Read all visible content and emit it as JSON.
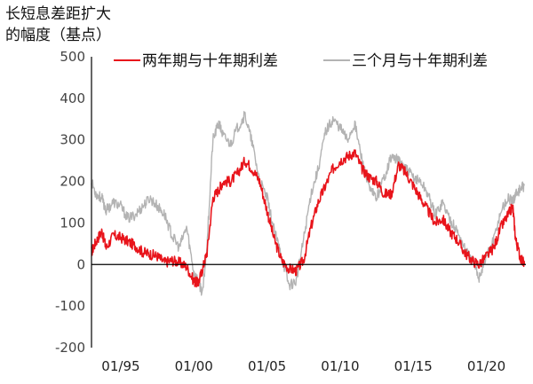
{
  "chart_data": {
    "type": "line",
    "title_lines": [
      "长短息差距扩大",
      "的幅度（基点）"
    ],
    "y_ticks": [
      "500",
      "400",
      "300",
      "200",
      "100",
      "0",
      "-100",
      "-200"
    ],
    "ylim": [
      -200,
      500
    ],
    "x_ticks": [
      "01/95",
      "01/00",
      "01/05",
      "01/10",
      "01/15",
      "01/20"
    ],
    "xlim": [
      1993,
      2022.7
    ],
    "legend_position": "top",
    "colors": {
      "two_year": "#e8141b",
      "three_month": "#b3b3b3",
      "zero_line": "#000000"
    },
    "series": [
      {
        "name": "两年期与十年期利差",
        "key": "two_year",
        "points": [
          [
            1993.0,
            30
          ],
          [
            1993.3,
            55
          ],
          [
            1993.7,
            80
          ],
          [
            1994.0,
            40
          ],
          [
            1994.5,
            70
          ],
          [
            1995.0,
            65
          ],
          [
            1995.5,
            55
          ],
          [
            1996.0,
            45
          ],
          [
            1996.5,
            30
          ],
          [
            1997.0,
            25
          ],
          [
            1997.5,
            20
          ],
          [
            1998.0,
            5
          ],
          [
            1998.5,
            10
          ],
          [
            1999.0,
            5
          ],
          [
            1999.5,
            -5
          ],
          [
            2000.0,
            -40
          ],
          [
            2000.3,
            -45
          ],
          [
            2000.6,
            -10
          ],
          [
            2000.9,
            30
          ],
          [
            2001.3,
            160
          ],
          [
            2001.7,
            180
          ],
          [
            2002.0,
            200
          ],
          [
            2002.5,
            200
          ],
          [
            2003.0,
            220
          ],
          [
            2003.5,
            250
          ],
          [
            2004.0,
            230
          ],
          [
            2004.5,
            200
          ],
          [
            2005.0,
            130
          ],
          [
            2005.5,
            60
          ],
          [
            2006.0,
            10
          ],
          [
            2006.5,
            -10
          ],
          [
            2007.0,
            -15
          ],
          [
            2007.5,
            10
          ],
          [
            2008.0,
            90
          ],
          [
            2008.5,
            150
          ],
          [
            2009.0,
            190
          ],
          [
            2009.5,
            230
          ],
          [
            2010.0,
            250
          ],
          [
            2010.5,
            260
          ],
          [
            2011.0,
            270
          ],
          [
            2011.5,
            230
          ],
          [
            2012.0,
            210
          ],
          [
            2012.5,
            200
          ],
          [
            2013.0,
            170
          ],
          [
            2013.5,
            170
          ],
          [
            2014.0,
            240
          ],
          [
            2014.5,
            220
          ],
          [
            2015.0,
            190
          ],
          [
            2015.5,
            160
          ],
          [
            2016.0,
            130
          ],
          [
            2016.5,
            100
          ],
          [
            2017.0,
            110
          ],
          [
            2017.5,
            80
          ],
          [
            2018.0,
            60
          ],
          [
            2018.5,
            30
          ],
          [
            2019.0,
            10
          ],
          [
            2019.5,
            0
          ],
          [
            2020.0,
            20
          ],
          [
            2020.5,
            40
          ],
          [
            2021.0,
            90
          ],
          [
            2021.5,
            120
          ],
          [
            2021.8,
            140
          ],
          [
            2022.0,
            60
          ],
          [
            2022.3,
            20
          ],
          [
            2022.6,
            0
          ]
        ]
      },
      {
        "name": "三个月与十年期利差",
        "key": "three_month",
        "points": [
          [
            1993.0,
            200
          ],
          [
            1993.3,
            170
          ],
          [
            1993.7,
            160
          ],
          [
            1994.0,
            130
          ],
          [
            1994.5,
            150
          ],
          [
            1995.0,
            140
          ],
          [
            1995.5,
            110
          ],
          [
            1996.0,
            120
          ],
          [
            1996.5,
            140
          ],
          [
            1997.0,
            160
          ],
          [
            1997.5,
            140
          ],
          [
            1998.0,
            120
          ],
          [
            1998.5,
            70
          ],
          [
            1999.0,
            40
          ],
          [
            1999.5,
            90
          ],
          [
            2000.0,
            -20
          ],
          [
            2000.3,
            -40
          ],
          [
            2000.6,
            -70
          ],
          [
            2000.9,
            50
          ],
          [
            2001.3,
            300
          ],
          [
            2001.7,
            340
          ],
          [
            2002.0,
            310
          ],
          [
            2002.5,
            290
          ],
          [
            2003.0,
            330
          ],
          [
            2003.5,
            360
          ],
          [
            2004.0,
            290
          ],
          [
            2004.5,
            200
          ],
          [
            2005.0,
            160
          ],
          [
            2005.5,
            80
          ],
          [
            2006.0,
            20
          ],
          [
            2006.5,
            -50
          ],
          [
            2007.0,
            -40
          ],
          [
            2007.5,
            60
          ],
          [
            2008.0,
            170
          ],
          [
            2008.5,
            230
          ],
          [
            2009.0,
            320
          ],
          [
            2009.5,
            350
          ],
          [
            2010.0,
            330
          ],
          [
            2010.5,
            300
          ],
          [
            2011.0,
            340
          ],
          [
            2011.5,
            250
          ],
          [
            2012.0,
            180
          ],
          [
            2012.5,
            160
          ],
          [
            2013.0,
            210
          ],
          [
            2013.5,
            260
          ],
          [
            2014.0,
            250
          ],
          [
            2014.5,
            230
          ],
          [
            2015.0,
            210
          ],
          [
            2015.5,
            200
          ],
          [
            2016.0,
            170
          ],
          [
            2016.5,
            120
          ],
          [
            2017.0,
            150
          ],
          [
            2017.5,
            110
          ],
          [
            2018.0,
            80
          ],
          [
            2018.5,
            40
          ],
          [
            2019.0,
            10
          ],
          [
            2019.5,
            -30
          ],
          [
            2020.0,
            20
          ],
          [
            2020.5,
            60
          ],
          [
            2021.0,
            130
          ],
          [
            2021.5,
            160
          ],
          [
            2021.8,
            150
          ],
          [
            2022.0,
            170
          ],
          [
            2022.3,
            180
          ],
          [
            2022.6,
            190
          ]
        ]
      }
    ]
  }
}
